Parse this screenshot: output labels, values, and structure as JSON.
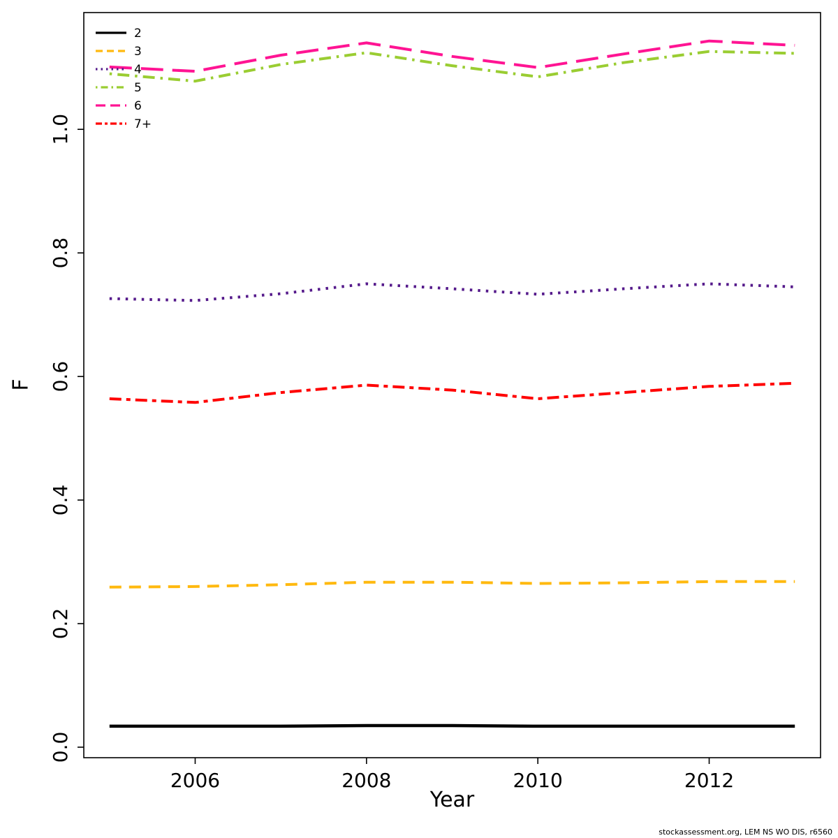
{
  "chart_data": {
    "type": "line",
    "title": "",
    "xlabel": "Year",
    "ylabel": "F",
    "footer": "stockassessment.org, LEM NS WO DIS, r6560",
    "grid": false,
    "legend_position": "top-left",
    "xlim": [
      2004.7,
      2013.3
    ],
    "ylim": [
      -0.017,
      1.189
    ],
    "xticks": [
      2006,
      2008,
      2010,
      2012
    ],
    "xtick_labels": [
      "2006",
      "2008",
      "2010",
      "2012"
    ],
    "yticks": [
      0.0,
      0.2,
      0.4,
      0.6,
      0.8,
      1.0
    ],
    "ytick_labels": [
      "0.0",
      "0.2",
      "0.4",
      "0.6",
      "0.8",
      "1.0"
    ],
    "x": [
      2005,
      2006,
      2007,
      2008,
      2009,
      2010,
      2011,
      2012,
      2013
    ],
    "series": [
      {
        "name": "2",
        "color": "#000000",
        "dash": "",
        "legend_dash": "",
        "width": 4.5,
        "values": [
          0.034,
          0.034,
          0.034,
          0.035,
          0.035,
          0.034,
          0.034,
          0.034,
          0.034
        ]
      },
      {
        "name": "3",
        "color": "#FFB90F",
        "dash": "17,11",
        "legend_dash": "10,6",
        "width": 4,
        "values": [
          0.259,
          0.26,
          0.263,
          0.267,
          0.267,
          0.265,
          0.266,
          0.268,
          0.268
        ]
      },
      {
        "name": "4",
        "color": "#551A8B",
        "dash": "3.5,8",
        "legend_dash": "2.5,5",
        "width": 4,
        "values": [
          0.726,
          0.723,
          0.734,
          0.75,
          0.742,
          0.733,
          0.742,
          0.75,
          0.745
        ]
      },
      {
        "name": "5",
        "color": "#9ACD32",
        "dash": "3.5,8,17,8",
        "legend_dash": "2.5,5,10,5",
        "width": 4,
        "values": [
          1.09,
          1.078,
          1.105,
          1.124,
          1.103,
          1.085,
          1.108,
          1.126,
          1.123
        ]
      },
      {
        "name": "6",
        "color": "#FF1493",
        "dash": "32,13",
        "legend_dash": "14,7",
        "width": 4,
        "values": [
          1.101,
          1.094,
          1.12,
          1.14,
          1.118,
          1.1,
          1.122,
          1.143,
          1.136
        ]
      },
      {
        "name": "7+",
        "color": "#FF0000",
        "dash": "17,7,6,7",
        "legend_dash": "9,4,4,4",
        "width": 4,
        "values": [
          0.564,
          0.558,
          0.574,
          0.586,
          0.578,
          0.564,
          0.574,
          0.584,
          0.589
        ]
      }
    ]
  }
}
